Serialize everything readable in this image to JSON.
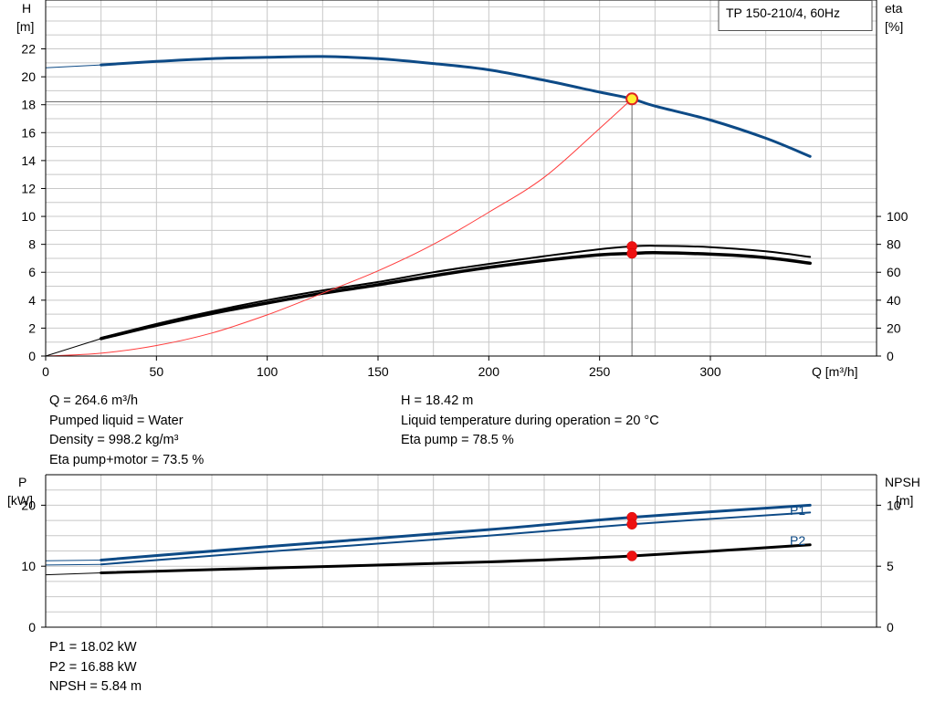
{
  "chart_data": [
    {
      "type": "line",
      "title": "TP 150-210/4, 60Hz",
      "xlabel": "Q [m³/h]",
      "ylabel_left": [
        "H",
        "[m]"
      ],
      "ylabel_right": [
        "eta",
        "[%]"
      ],
      "xlim": [
        0,
        375
      ],
      "xticks": [
        0,
        50,
        100,
        150,
        200,
        250,
        300
      ],
      "ylim_left": [
        0,
        25.5
      ],
      "yticks_left": [
        0,
        2,
        4,
        6,
        8,
        10,
        12,
        14,
        16,
        18,
        20,
        22
      ],
      "ylim_right": [
        0,
        255
      ],
      "yticks_right": [
        0,
        20,
        40,
        60,
        80,
        100
      ],
      "grid": true,
      "series": [
        {
          "axis": "left",
          "color": "#0d4a86",
          "width": 3,
          "x": [
            25,
            50,
            75,
            100,
            125,
            150,
            175,
            200,
            225,
            250,
            264.6,
            275,
            300,
            325,
            345
          ],
          "values": [
            20.85,
            21.1,
            21.3,
            21.4,
            21.45,
            21.3,
            20.95,
            20.5,
            19.75,
            18.9,
            18.42,
            17.9,
            16.9,
            15.6,
            14.3
          ]
        },
        {
          "axis": "left",
          "color": "#0d4a86",
          "width": 1,
          "x": [
            0,
            25
          ],
          "values": [
            20.65,
            20.85
          ]
        },
        {
          "axis": "right",
          "color": "#000000",
          "width": 2,
          "x": [
            25,
            50,
            75,
            100,
            125,
            150,
            175,
            200,
            225,
            250,
            264.6,
            275,
            300,
            325,
            345
          ],
          "values": [
            13,
            23,
            32,
            40,
            47,
            53,
            60,
            66,
            71.5,
            76.5,
            78.5,
            79,
            78,
            75,
            71
          ]
        },
        {
          "axis": "right",
          "color": "#000000",
          "width": 3.5,
          "x": [
            25,
            50,
            75,
            100,
            125,
            150,
            175,
            200,
            225,
            250,
            264.6,
            275,
            300,
            325,
            345
          ],
          "values": [
            12.5,
            22,
            30.5,
            38,
            45,
            51,
            57.5,
            63.5,
            68.5,
            72.5,
            73.5,
            74,
            73,
            70.5,
            66.5
          ]
        },
        {
          "axis": "right",
          "color": "#000000",
          "width": 1,
          "x": [
            0,
            25
          ],
          "values": [
            0,
            12.5
          ]
        },
        {
          "axis": "left",
          "color": "#ff3b3b",
          "width": 1,
          "x": [
            0,
            25,
            50,
            75,
            100,
            125,
            150,
            175,
            200,
            225,
            250,
            264.6
          ],
          "values": [
            0,
            0.2,
            0.75,
            1.65,
            2.95,
            4.5,
            6.1,
            8.0,
            10.3,
            12.8,
            16.3,
            18.42
          ]
        }
      ],
      "reference_lines": {
        "x": 264.6,
        "y": 18.2
      },
      "duty_points": [
        {
          "x": 264.6,
          "y": 18.42,
          "axis": "left",
          "style": "yellow"
        },
        {
          "x": 264.6,
          "y": 78.5,
          "axis": "right",
          "style": "red"
        },
        {
          "x": 264.6,
          "y": 73.5,
          "axis": "right",
          "style": "red"
        }
      ]
    },
    {
      "type": "line",
      "ylabel_left": [
        "P",
        "[kW]"
      ],
      "ylabel_right": [
        "NPSH",
        "[m]"
      ],
      "xlim": [
        0,
        375
      ],
      "ylim_left": [
        0,
        25
      ],
      "yticks_left": [
        0,
        10,
        20
      ],
      "ylim_right": [
        0,
        12.5
      ],
      "yticks_right": [
        0,
        5,
        10
      ],
      "grid": true,
      "series": [
        {
          "name": "P1",
          "axis": "left",
          "color": "#0d4a86",
          "width": 3,
          "x": [
            25,
            100,
            200,
            264.6,
            345
          ],
          "values": [
            11.0,
            13.2,
            16.0,
            18.02,
            20.0
          ]
        },
        {
          "name": "P2",
          "axis": "left",
          "color": "#0d4a86",
          "width": 2,
          "x": [
            25,
            100,
            200,
            264.6,
            345
          ],
          "values": [
            10.3,
            12.4,
            15.0,
            16.88,
            18.8
          ]
        },
        {
          "axis": "right",
          "color": "#000000",
          "width": 3,
          "x": [
            25,
            100,
            200,
            264.6,
            345
          ],
          "values": [
            4.45,
            4.85,
            5.35,
            5.84,
            6.75
          ]
        },
        {
          "axis": "left",
          "color": "#0d4a86",
          "width": 1,
          "x": [
            0,
            25
          ],
          "values": [
            10.9,
            11.0
          ]
        },
        {
          "axis": "left",
          "color": "#0d4a86",
          "width": 1,
          "x": [
            0,
            25
          ],
          "values": [
            10.2,
            10.3
          ]
        },
        {
          "axis": "right",
          "color": "#000000",
          "width": 1,
          "x": [
            0,
            25
          ],
          "values": [
            4.3,
            4.45
          ]
        }
      ],
      "duty_points": [
        {
          "x": 264.6,
          "y": 18.02,
          "axis": "left",
          "style": "red"
        },
        {
          "x": 264.6,
          "y": 16.88,
          "axis": "left",
          "style": "red"
        },
        {
          "x": 264.6,
          "y": 5.84,
          "axis": "right",
          "style": "red"
        }
      ]
    }
  ],
  "info_top_left": [
    "Q = 264.6 m³/h",
    "Pumped liquid = Water",
    "Density = 998.2 kg/m³",
    "Eta pump+motor = 73.5 %"
  ],
  "info_top_right": [
    "H = 18.42 m",
    "Liquid temperature during operation = 20 °C",
    "Eta pump = 78.5 %"
  ],
  "info_bottom": [
    "P1 = 18.02 kW",
    "P2 = 16.88 kW",
    "NPSH = 5.84 m"
  ],
  "colors": {
    "curve_blue": "#0d4a86",
    "system_red": "#ff3b3b",
    "grid": "#c8c8c8",
    "point_red": "#ee1111",
    "point_yellow": "#ffee33"
  }
}
